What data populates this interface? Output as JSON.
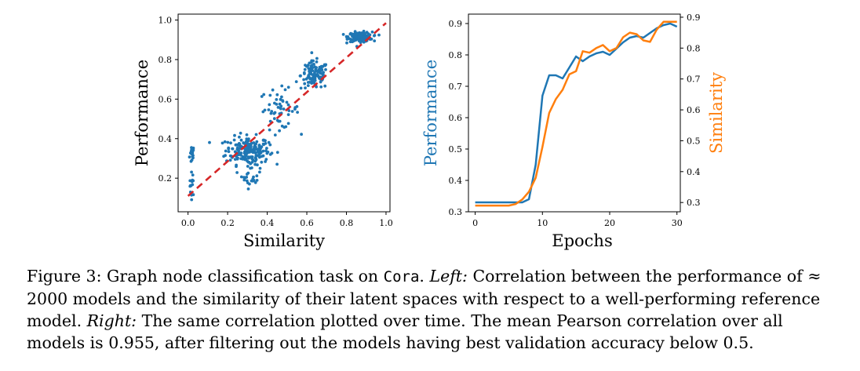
{
  "colors": {
    "blue": "#1f77b4",
    "orange": "#ff7f0e",
    "red": "#d62728"
  },
  "chart_data": [
    {
      "type": "scatter",
      "xlabel": "Similarity",
      "ylabel": "Performance",
      "xlim": [
        -0.05,
        1.02
      ],
      "ylim": [
        0.03,
        1.03
      ],
      "xticks": [
        "0.0",
        "0.2",
        "0.4",
        "0.6",
        "0.8",
        "1.0"
      ],
      "yticks": [
        "0.2",
        "0.4",
        "0.6",
        "0.8",
        "1.0"
      ],
      "fit_line": {
        "x": [
          0.0,
          1.0
        ],
        "y": [
          0.11,
          0.985
        ]
      },
      "clusters": [
        {
          "cx": 0.02,
          "cy": 0.32,
          "sx": 0.006,
          "sy": 0.025,
          "n": 18
        },
        {
          "cx": 0.02,
          "cy": 0.17,
          "sx": 0.006,
          "sy": 0.03,
          "n": 14
        },
        {
          "cx": 0.3,
          "cy": 0.34,
          "sx": 0.055,
          "sy": 0.035,
          "n": 200
        },
        {
          "cx": 0.32,
          "cy": 0.22,
          "sx": 0.025,
          "sy": 0.035,
          "n": 30
        },
        {
          "cx": 0.46,
          "cy": 0.55,
          "sx": 0.05,
          "sy": 0.05,
          "n": 55
        },
        {
          "cx": 0.64,
          "cy": 0.72,
          "sx": 0.035,
          "sy": 0.035,
          "n": 120
        },
        {
          "cx": 0.87,
          "cy": 0.915,
          "sx": 0.03,
          "sy": 0.012,
          "n": 170
        }
      ]
    },
    {
      "type": "line",
      "xlabel": "Epochs",
      "ylabel": "Performance",
      "y2label": "Similarity",
      "xlim": [
        -1,
        30.5
      ],
      "ylim": [
        0.3,
        0.93
      ],
      "y2lim": [
        0.27,
        0.91
      ],
      "xticks": [
        "0",
        "10",
        "20",
        "30"
      ],
      "yticks": [
        "0.3",
        "0.4",
        "0.5",
        "0.6",
        "0.7",
        "0.8",
        "0.9"
      ],
      "y2ticks": [
        "0.3",
        "0.4",
        "0.5",
        "0.6",
        "0.7",
        "0.8",
        "0.9"
      ],
      "x": [
        0,
        1,
        2,
        3,
        4,
        5,
        6,
        7,
        8,
        9,
        10,
        11,
        12,
        13,
        14,
        15,
        16,
        17,
        18,
        19,
        20,
        21,
        22,
        23,
        24,
        25,
        26,
        27,
        28,
        29,
        30
      ],
      "series": [
        {
          "axis": "left",
          "color": "blue",
          "values": [
            0.33,
            0.33,
            0.33,
            0.33,
            0.33,
            0.33,
            0.33,
            0.33,
            0.34,
            0.45,
            0.67,
            0.735,
            0.735,
            0.725,
            0.76,
            0.795,
            0.78,
            0.795,
            0.805,
            0.81,
            0.8,
            0.82,
            0.84,
            0.855,
            0.86,
            0.855,
            0.87,
            0.885,
            0.895,
            0.9,
            0.89
          ]
        },
        {
          "axis": "right",
          "color": "orange",
          "values": [
            0.29,
            0.29,
            0.29,
            0.29,
            0.29,
            0.29,
            0.295,
            0.31,
            0.335,
            0.38,
            0.48,
            0.59,
            0.635,
            0.665,
            0.715,
            0.725,
            0.79,
            0.785,
            0.8,
            0.81,
            0.79,
            0.8,
            0.835,
            0.85,
            0.845,
            0.825,
            0.82,
            0.86,
            0.885,
            0.885,
            0.885
          ]
        }
      ]
    }
  ],
  "caption": {
    "fig_label": "Figure 3: Graph node classification task on ",
    "dataset": "Cora",
    "after_dataset": ". ",
    "left_label": "Left:",
    "left_text": " Correlation between the performance of ≈ 2000 models and the similarity of their latent spaces with respect to a well-performing reference model. ",
    "right_label": "Right:",
    "right_text": " The same correlation plotted over time. The mean Pearson correlation over all models is 0.955, after filtering out the models having best validation accuracy below 0.5."
  }
}
